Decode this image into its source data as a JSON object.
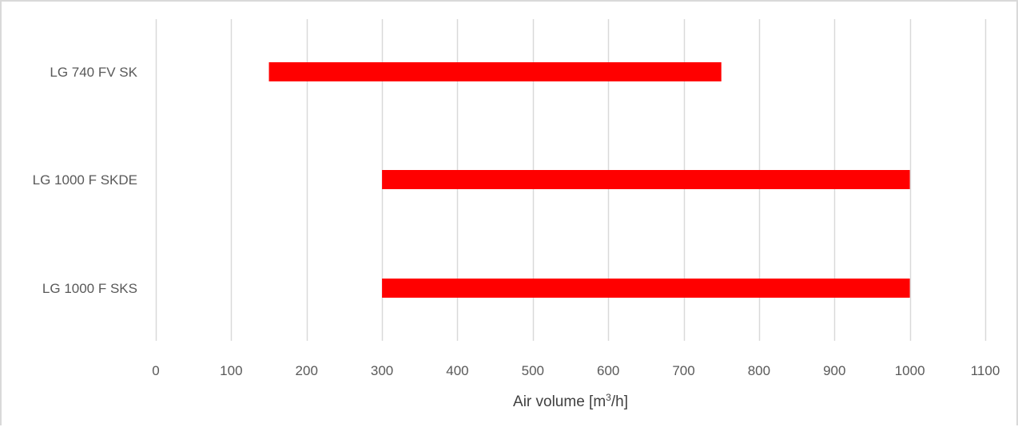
{
  "chart_data": {
    "type": "bar",
    "orientation": "horizontal",
    "style": "floating-range",
    "categories": [
      "LG 740 FV SK",
      "LG 1000 F SKDE",
      "LG 1000 F SKS"
    ],
    "ranges": [
      {
        "category": "LG 740 FV SK",
        "start": 150,
        "end": 750
      },
      {
        "category": "LG 1000 F SKDE",
        "start": 300,
        "end": 1000
      },
      {
        "category": "LG 1000 F SKS",
        "start": 300,
        "end": 1000
      }
    ],
    "xlabel": {
      "prefix": "Air volume [m",
      "superscript": "3",
      "suffix": "/h]"
    },
    "xlim": [
      0,
      1100
    ],
    "xticks": [
      0,
      100,
      200,
      300,
      400,
      500,
      600,
      700,
      800,
      900,
      1000,
      1100
    ],
    "grid": "vertical",
    "legend": "none",
    "colors": {
      "bar": "#ff0000",
      "grid": "#d9d9d9",
      "tick_text": "#595959",
      "axis_title": "#404040",
      "frame": "#d9d9d9"
    }
  }
}
